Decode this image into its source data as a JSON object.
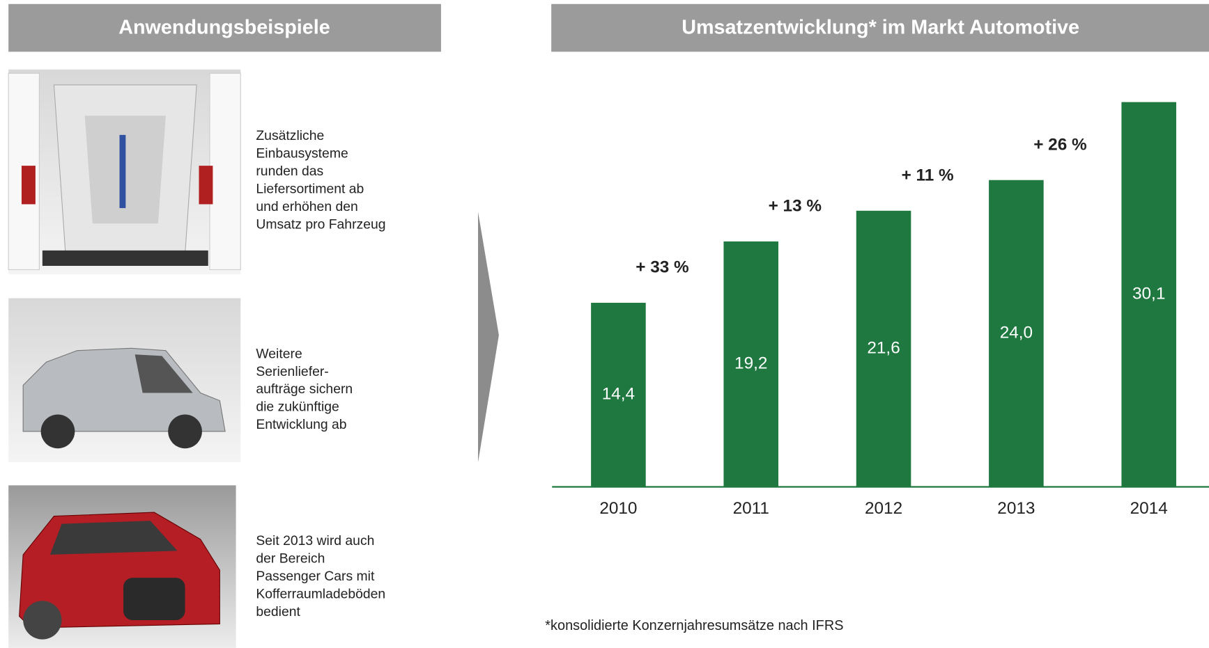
{
  "left_title": "Anwendungsbeispiele",
  "examples": [
    {
      "lines": [
        "Zusätzliche",
        "Einbausysteme",
        "runden das",
        "Liefersortiment ab",
        "und erhöhen den",
        "Umsatz pro Fahrzeug"
      ]
    },
    {
      "lines": [
        "Weitere",
        "Serienliefer-",
        "aufträge sichern",
        "die zukünftige",
        "Entwicklung ab"
      ]
    },
    {
      "lines": [
        "Seit 2013 wird auch",
        "der Bereich",
        "Passenger Cars mit",
        "Kofferraumladeböden",
        "bedient"
      ]
    }
  ],
  "chart_data": {
    "type": "bar",
    "title": "Umsatzentwicklung* im Markt Automotive",
    "categories": [
      "2010",
      "2011",
      "2012",
      "2013",
      "2014"
    ],
    "values": [
      14.4,
      19.2,
      21.6,
      24.0,
      30.1
    ],
    "value_labels": [
      "14,4",
      "19,2",
      "21,6",
      "24,0",
      "30,1"
    ],
    "color": "#1e7840",
    "ylim": [
      0,
      35
    ],
    "annotations": [
      "+ 33 %",
      "+ 13 %",
      "+ 11 %",
      "+ 26 %"
    ],
    "footnote": "*konsolidierte Konzernjahresumsätze nach IFRS"
  }
}
